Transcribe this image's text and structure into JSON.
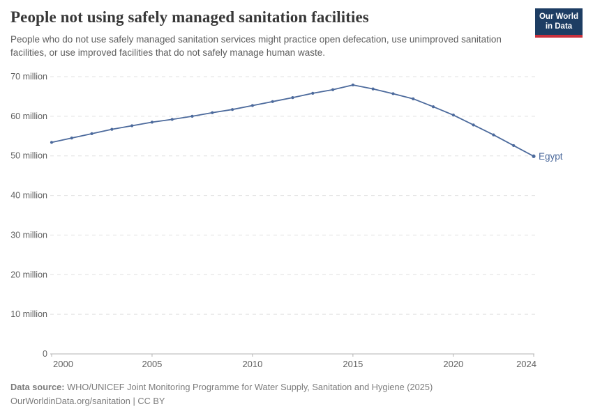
{
  "header": {
    "title": "People not using safely managed sanitation facilities",
    "subtitle": "People who do not use safely managed sanitation services might practice open defecation, use unimproved sanitation facilities, or use improved facilities that do not safely manage human waste.",
    "logo": {
      "line1": "Our World",
      "line2": "in Data",
      "bg_color": "#1d3d63",
      "accent_color": "#c9303c"
    }
  },
  "chart_data": {
    "type": "line",
    "title": "People not using safely managed sanitation facilities",
    "xlabel": "",
    "ylabel": "",
    "unit": "million people",
    "grid": "horizontal-dashed",
    "legend_position": "end-of-line-label",
    "xlim": [
      2000,
      2024
    ],
    "ylim": [
      0,
      70
    ],
    "x_ticks": [
      2000,
      2005,
      2010,
      2015,
      2020,
      2024
    ],
    "y_ticks": [
      {
        "value": 0,
        "label": "0"
      },
      {
        "value": 10,
        "label": "10 million"
      },
      {
        "value": 20,
        "label": "20 million"
      },
      {
        "value": 30,
        "label": "30 million"
      },
      {
        "value": 40,
        "label": "40 million"
      },
      {
        "value": 50,
        "label": "50 million"
      },
      {
        "value": 60,
        "label": "60 million"
      },
      {
        "value": 70,
        "label": "70 million"
      }
    ],
    "x": [
      2000,
      2001,
      2002,
      2003,
      2004,
      2005,
      2006,
      2007,
      2008,
      2009,
      2010,
      2011,
      2012,
      2013,
      2014,
      2015,
      2016,
      2017,
      2018,
      2019,
      2020,
      2021,
      2022,
      2023,
      2024
    ],
    "series": [
      {
        "name": "Egypt",
        "color": "#4c6a9c",
        "values": [
          53.4,
          54.5,
          55.6,
          56.7,
          57.6,
          58.5,
          59.2,
          60.0,
          60.9,
          61.7,
          62.7,
          63.7,
          64.7,
          65.8,
          66.7,
          67.9,
          66.9,
          65.7,
          64.4,
          62.4,
          60.3,
          57.8,
          55.3,
          52.6,
          49.9
        ]
      }
    ],
    "style": {
      "gridline_color": "#e0e0e0",
      "axis_color": "#b3b3b3",
      "tick_label_color": "#616161"
    }
  },
  "footer": {
    "datasource_label": "Data source:",
    "datasource_text": " WHO/UNICEF Joint Monitoring Programme for Water Supply, Sanitation and Hygiene (2025)",
    "license_line": "OurWorldinData.org/sanitation | CC BY"
  }
}
